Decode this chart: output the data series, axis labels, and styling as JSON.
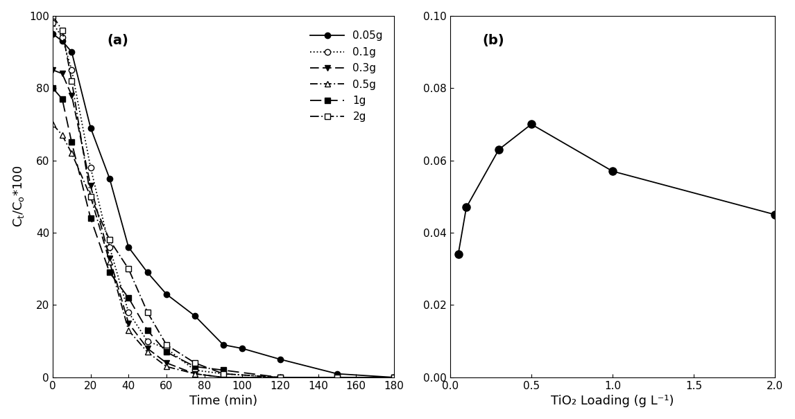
{
  "panel_a": {
    "label": "(a)",
    "xlabel": "Time (min)",
    "ylabel": "C_t/C_o*100",
    "xlim": [
      0,
      180
    ],
    "ylim": [
      0,
      100
    ],
    "xticks": [
      0,
      20,
      40,
      60,
      80,
      100,
      120,
      140,
      160,
      180
    ],
    "yticks": [
      0,
      20,
      40,
      60,
      80,
      100
    ],
    "series": [
      {
        "label": "0.05g",
        "linestyle": "solid",
        "marker": "o",
        "fillstyle": "full",
        "color": "black",
        "x": [
          0,
          5,
          10,
          20,
          30,
          40,
          50,
          60,
          75,
          90,
          100,
          120,
          150,
          180
        ],
        "y": [
          95,
          93,
          90,
          69,
          55,
          36,
          29,
          23,
          17,
          9,
          8,
          5,
          1,
          0
        ]
      },
      {
        "label": "0.1g",
        "linestyle": "dotted",
        "marker": "o",
        "fillstyle": "none",
        "color": "black",
        "x": [
          0,
          5,
          10,
          20,
          30,
          40,
          50,
          60,
          75,
          90,
          120,
          150,
          180
        ],
        "y": [
          98,
          94,
          85,
          58,
          36,
          18,
          10,
          8,
          2,
          1,
          0,
          0,
          0
        ]
      },
      {
        "label": "0.3g",
        "linestyle": "dashed",
        "marker": "v",
        "fillstyle": "full",
        "color": "black",
        "x": [
          0,
          5,
          10,
          20,
          30,
          40,
          50,
          60,
          75,
          90,
          120,
          150,
          180
        ],
        "y": [
          85,
          84,
          78,
          53,
          33,
          15,
          8,
          4,
          1,
          0,
          0,
          0,
          0
        ]
      },
      {
        "label": "0.5g",
        "linestyle": "dashdot",
        "marker": "^",
        "fillstyle": "none",
        "color": "black",
        "x": [
          0,
          5,
          10,
          20,
          30,
          40,
          50,
          60,
          75,
          90,
          120,
          150,
          180
        ],
        "y": [
          70,
          67,
          62,
          50,
          32,
          13,
          7,
          3,
          1,
          0,
          0,
          0,
          0
        ]
      },
      {
        "label": "1g",
        "linestyle": "dashed_long",
        "marker": "s",
        "fillstyle": "full",
        "color": "black",
        "x": [
          0,
          5,
          10,
          20,
          30,
          40,
          50,
          60,
          75,
          90,
          120,
          150,
          180
        ],
        "y": [
          80,
          77,
          65,
          44,
          29,
          22,
          13,
          7,
          3,
          2,
          0,
          0,
          0
        ]
      },
      {
        "label": "2g",
        "linestyle": "dashdot2",
        "marker": "s",
        "fillstyle": "none",
        "color": "black",
        "x": [
          0,
          5,
          10,
          20,
          30,
          40,
          50,
          60,
          75,
          90,
          120,
          150,
          180
        ],
        "y": [
          100,
          96,
          82,
          50,
          38,
          30,
          18,
          9,
          4,
          1,
          0,
          0,
          0
        ]
      }
    ]
  },
  "panel_b": {
    "label": "(b)",
    "xlabel": "TiO₂ Loading (g L⁻¹)",
    "xlim": [
      0.0,
      2.0
    ],
    "ylim": [
      0.0,
      0.1
    ],
    "xticks": [
      0.0,
      0.5,
      1.0,
      1.5,
      2.0
    ],
    "yticks": [
      0.0,
      0.02,
      0.04,
      0.06,
      0.08,
      0.1
    ],
    "x": [
      0.05,
      0.1,
      0.3,
      0.5,
      1.0,
      2.0
    ],
    "y": [
      0.034,
      0.047,
      0.063,
      0.07,
      0.057,
      0.045
    ],
    "marker": "o",
    "color": "black",
    "linestyle": "solid"
  }
}
